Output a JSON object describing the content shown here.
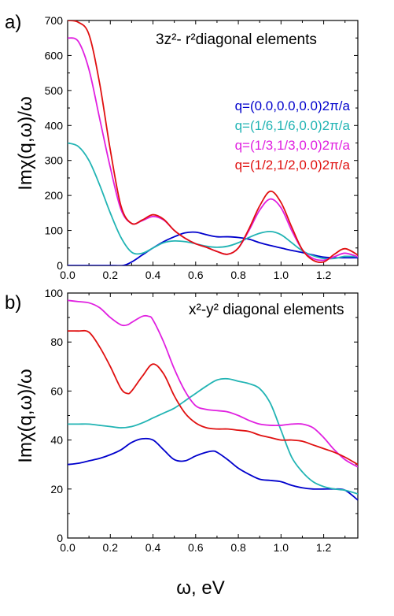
{
  "chart_data": [
    {
      "type": "line",
      "panel_label": "a)",
      "annotation": "3z²- r²diagonal elements",
      "xlabel": "",
      "ylabel": "Imχ(q,ω)/ω",
      "xlim": [
        0.0,
        1.36
      ],
      "ylim": [
        0,
        700
      ],
      "xticks": [
        "0.0",
        "0.2",
        "0.4",
        "0.6",
        "0.8",
        "1.0",
        "1.2"
      ],
      "yticks": [
        "0",
        "100",
        "200",
        "300",
        "400",
        "500",
        "600",
        "700"
      ],
      "legend_position": "center-right",
      "series": [
        {
          "name": "q=(0.0,0.0,0.0)2π/a",
          "color": "#0000cc",
          "x": [
            0.0,
            0.1,
            0.2,
            0.26,
            0.3,
            0.35,
            0.4,
            0.45,
            0.5,
            0.55,
            0.6,
            0.65,
            0.7,
            0.75,
            0.8,
            0.85,
            0.9,
            0.95,
            1.0,
            1.05,
            1.1,
            1.15,
            1.2,
            1.25,
            1.3,
            1.36
          ],
          "y": [
            0,
            0,
            0,
            0,
            10,
            30,
            50,
            68,
            82,
            93,
            95,
            88,
            82,
            82,
            80,
            75,
            65,
            57,
            50,
            43,
            37,
            30,
            24,
            22,
            22,
            22
          ]
        },
        {
          "name": "q=(1/6,1/6,0.0)2π/a",
          "color": "#22b4b4",
          "x": [
            0.0,
            0.05,
            0.1,
            0.15,
            0.2,
            0.25,
            0.3,
            0.35,
            0.4,
            0.45,
            0.5,
            0.55,
            0.6,
            0.65,
            0.7,
            0.75,
            0.8,
            0.85,
            0.9,
            0.95,
            1.0,
            1.05,
            1.1,
            1.15,
            1.2,
            1.25,
            1.3,
            1.36
          ],
          "y": [
            350,
            340,
            300,
            230,
            150,
            80,
            38,
            35,
            50,
            65,
            70,
            68,
            62,
            55,
            52,
            55,
            65,
            80,
            92,
            97,
            88,
            65,
            42,
            28,
            20,
            20,
            26,
            25
          ]
        },
        {
          "name": "q=(1/3,1/3,0.0)2π/a",
          "color": "#e020e0",
          "x": [
            0.0,
            0.05,
            0.1,
            0.15,
            0.2,
            0.25,
            0.3,
            0.35,
            0.4,
            0.45,
            0.5,
            0.55,
            0.6,
            0.65,
            0.7,
            0.75,
            0.8,
            0.85,
            0.9,
            0.95,
            1.0,
            1.05,
            1.1,
            1.15,
            1.2,
            1.25,
            1.3,
            1.36
          ],
          "y": [
            650,
            640,
            560,
            420,
            280,
            160,
            120,
            128,
            140,
            130,
            100,
            78,
            62,
            52,
            40,
            32,
            50,
            100,
            158,
            190,
            165,
            100,
            45,
            20,
            15,
            25,
            35,
            25
          ]
        },
        {
          "name": "q=(1/2,1/2,0.0)2π/a",
          "color": "#e01010",
          "x": [
            0.0,
            0.05,
            0.1,
            0.15,
            0.2,
            0.25,
            0.3,
            0.35,
            0.4,
            0.45,
            0.5,
            0.55,
            0.6,
            0.65,
            0.7,
            0.75,
            0.8,
            0.85,
            0.9,
            0.95,
            1.0,
            1.05,
            1.1,
            1.15,
            1.2,
            1.25,
            1.3,
            1.36
          ],
          "y": [
            700,
            695,
            660,
            520,
            330,
            170,
            120,
            130,
            145,
            132,
            100,
            78,
            62,
            52,
            40,
            32,
            50,
            105,
            170,
            212,
            180,
            110,
            45,
            15,
            10,
            32,
            48,
            30
          ]
        }
      ]
    },
    {
      "type": "line",
      "panel_label": "b)",
      "annotation": "x²-y² diagonal elements",
      "xlabel": "ω, eV",
      "ylabel": "Imχ(q,ω)/ω",
      "xlim": [
        0.0,
        1.36
      ],
      "ylim": [
        0,
        100
      ],
      "xticks": [
        "0.0",
        "0.2",
        "0.4",
        "0.6",
        "0.8",
        "1.0",
        "1.2"
      ],
      "yticks": [
        "0",
        "20",
        "40",
        "60",
        "80",
        "100"
      ],
      "series": [
        {
          "name": "q=(0.0,0.0,0.0)2π/a",
          "color": "#0000cc",
          "x": [
            0.0,
            0.05,
            0.1,
            0.15,
            0.2,
            0.25,
            0.3,
            0.35,
            0.4,
            0.45,
            0.5,
            0.55,
            0.6,
            0.65,
            0.68,
            0.7,
            0.75,
            0.8,
            0.85,
            0.9,
            0.95,
            1.0,
            1.05,
            1.1,
            1.15,
            1.2,
            1.25,
            1.3,
            1.36
          ],
          "y": [
            30,
            30.5,
            31.5,
            32.5,
            34,
            36,
            39,
            40.5,
            40,
            36,
            32,
            31.5,
            33.5,
            35,
            35.5,
            35,
            32,
            28.5,
            26,
            24,
            23.5,
            23,
            21.5,
            20.5,
            20,
            20,
            20,
            19.5,
            15.5
          ]
        },
        {
          "name": "q=(1/6,1/6,0.0)2π/a",
          "color": "#22b4b4",
          "x": [
            0.0,
            0.05,
            0.1,
            0.15,
            0.2,
            0.25,
            0.3,
            0.35,
            0.4,
            0.45,
            0.5,
            0.55,
            0.6,
            0.65,
            0.7,
            0.75,
            0.8,
            0.85,
            0.9,
            0.95,
            1.0,
            1.05,
            1.1,
            1.15,
            1.2,
            1.25,
            1.3,
            1.36
          ],
          "y": [
            46.5,
            46.5,
            46.5,
            46,
            45.5,
            45,
            45.5,
            47,
            49,
            51,
            53,
            56,
            59,
            62,
            64.5,
            65,
            64,
            63,
            61,
            55,
            44,
            33,
            27,
            23,
            21,
            20,
            19.5,
            18
          ]
        },
        {
          "name": "q=(1/3,1/3,0.0)2π/a",
          "color": "#e020e0",
          "x": [
            0.0,
            0.05,
            0.1,
            0.15,
            0.2,
            0.25,
            0.28,
            0.3,
            0.35,
            0.38,
            0.4,
            0.45,
            0.5,
            0.55,
            0.6,
            0.65,
            0.7,
            0.75,
            0.8,
            0.85,
            0.9,
            0.95,
            1.0,
            1.05,
            1.1,
            1.15,
            1.2,
            1.25,
            1.3,
            1.36
          ],
          "y": [
            97,
            96.5,
            96,
            94,
            90,
            87,
            87,
            88,
            90.5,
            90.5,
            89,
            80,
            69,
            60,
            54,
            52.5,
            52,
            51.5,
            50,
            48,
            46.5,
            46,
            46,
            46.5,
            46.5,
            45,
            41,
            36,
            32,
            29
          ]
        },
        {
          "name": "q=(1/2,1/2,0.0)2π/a",
          "color": "#e01010",
          "x": [
            0.0,
            0.05,
            0.1,
            0.15,
            0.2,
            0.25,
            0.28,
            0.3,
            0.35,
            0.4,
            0.45,
            0.5,
            0.55,
            0.6,
            0.65,
            0.7,
            0.75,
            0.8,
            0.85,
            0.9,
            0.95,
            1.0,
            1.05,
            1.1,
            1.15,
            1.2,
            1.25,
            1.3,
            1.36
          ],
          "y": [
            84.5,
            84.5,
            84,
            78,
            70,
            61,
            59,
            60,
            66,
            71,
            67,
            58,
            51,
            47,
            45,
            44.5,
            44.5,
            44,
            43.5,
            42,
            41,
            40,
            40,
            39.5,
            38,
            36.5,
            35,
            33,
            30
          ]
        }
      ]
    }
  ]
}
